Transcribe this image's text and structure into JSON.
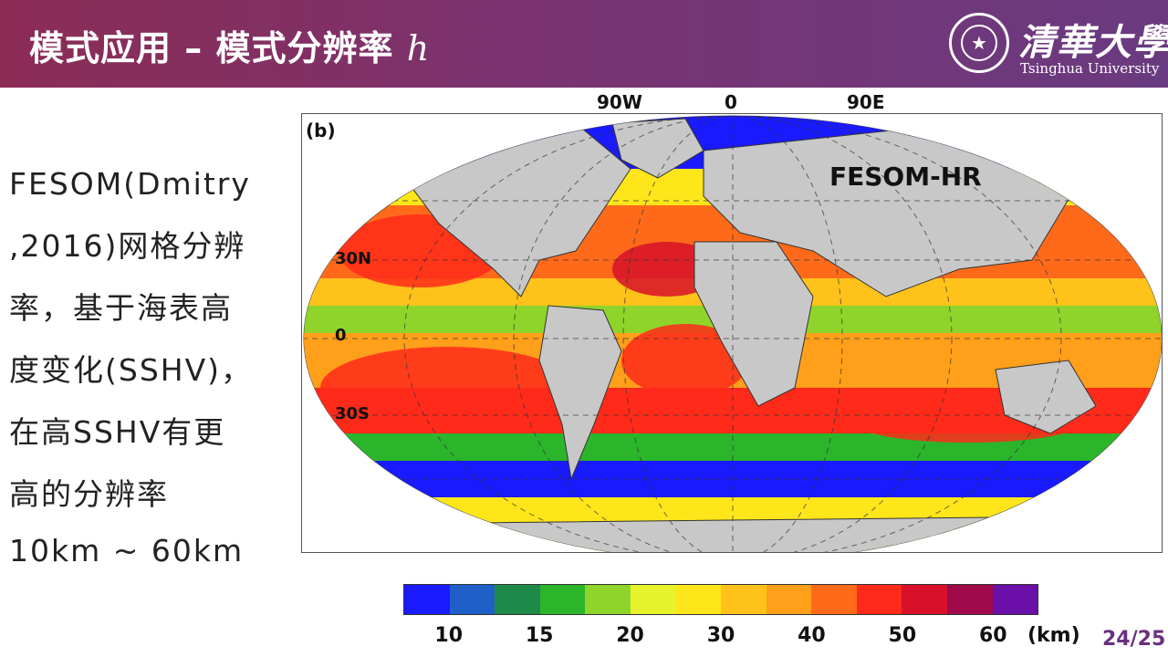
{
  "header": {
    "title": "模式应用 – 模式分辨率",
    "title_variable": "h",
    "logo_cn": "清華大學",
    "logo_en": "Tsinghua University",
    "seal_icon": "tsinghua-seal-icon"
  },
  "body": {
    "lines": [
      "FESOM(Dmitry",
      ",2016)网格分辨",
      "率，基于海表高",
      "度变化(SSHV)，",
      "在高SSHV有更",
      "高的分辨率"
    ],
    "range": "10km ~ 60km"
  },
  "figure": {
    "panel_label": "(b)",
    "model_label": "FESOM-HR",
    "lon_labels": [
      "90W",
      "0",
      "90E"
    ],
    "lat_labels": [
      "30N",
      "0",
      "30S"
    ]
  },
  "colorbar": {
    "colors": [
      "#1a1aff",
      "#1f5fc8",
      "#1e8a4a",
      "#2bb52b",
      "#8fd42a",
      "#e6f22a",
      "#ffe61a",
      "#ffc21a",
      "#ff9f1a",
      "#ff6a1a",
      "#ff2a1a",
      "#d8102a",
      "#a00a4a",
      "#6a10a8"
    ],
    "tick_labels": [
      "10",
      "15",
      "20",
      "30",
      "40",
      "50",
      "60"
    ],
    "unit": "(km)"
  },
  "footer": {
    "page": "24/25"
  }
}
